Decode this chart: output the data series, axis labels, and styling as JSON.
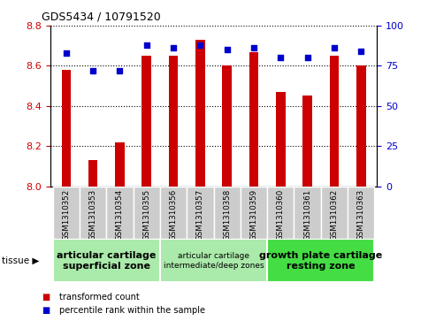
{
  "title": "GDS5434 / 10791520",
  "samples": [
    "GSM1310352",
    "GSM1310353",
    "GSM1310354",
    "GSM1310355",
    "GSM1310356",
    "GSM1310357",
    "GSM1310358",
    "GSM1310359",
    "GSM1310360",
    "GSM1310361",
    "GSM1310362",
    "GSM1310363"
  ],
  "red_values": [
    8.58,
    8.13,
    8.22,
    8.65,
    8.65,
    8.73,
    8.6,
    8.67,
    8.47,
    8.45,
    8.65,
    8.6
  ],
  "blue_values": [
    83,
    72,
    72,
    88,
    86,
    88,
    85,
    86,
    80,
    80,
    86,
    84
  ],
  "ylim_left": [
    8.0,
    8.8
  ],
  "ylim_right": [
    0,
    100
  ],
  "yticks_left": [
    8.0,
    8.2,
    8.4,
    8.6,
    8.8
  ],
  "yticks_right": [
    0,
    25,
    50,
    75,
    100
  ],
  "bar_color": "#cc0000",
  "dot_color": "#0000cc",
  "groups": [
    {
      "label": "articular cartilage\nsuperficial zone",
      "start": 0,
      "end": 4,
      "color": "#aaeaaa",
      "fontsize": 8,
      "bold": true
    },
    {
      "label": "articular cartilage\nintermediate/deep zones",
      "start": 4,
      "end": 8,
      "color": "#aaeaaa",
      "fontsize": 6.5,
      "bold": false
    },
    {
      "label": "growth plate cartilage\nresting zone",
      "start": 8,
      "end": 12,
      "color": "#44dd44",
      "fontsize": 8,
      "bold": true
    }
  ],
  "legend_items": [
    {
      "label": "transformed count",
      "color": "#cc0000"
    },
    {
      "label": "percentile rank within the sample",
      "color": "#0000cc"
    }
  ],
  "tissue_label": "tissue",
  "left_axis_color": "#cc0000",
  "right_axis_color": "#0000cc",
  "grid_color": "black",
  "xtick_bg_color": "#cccccc",
  "bar_width": 0.35
}
